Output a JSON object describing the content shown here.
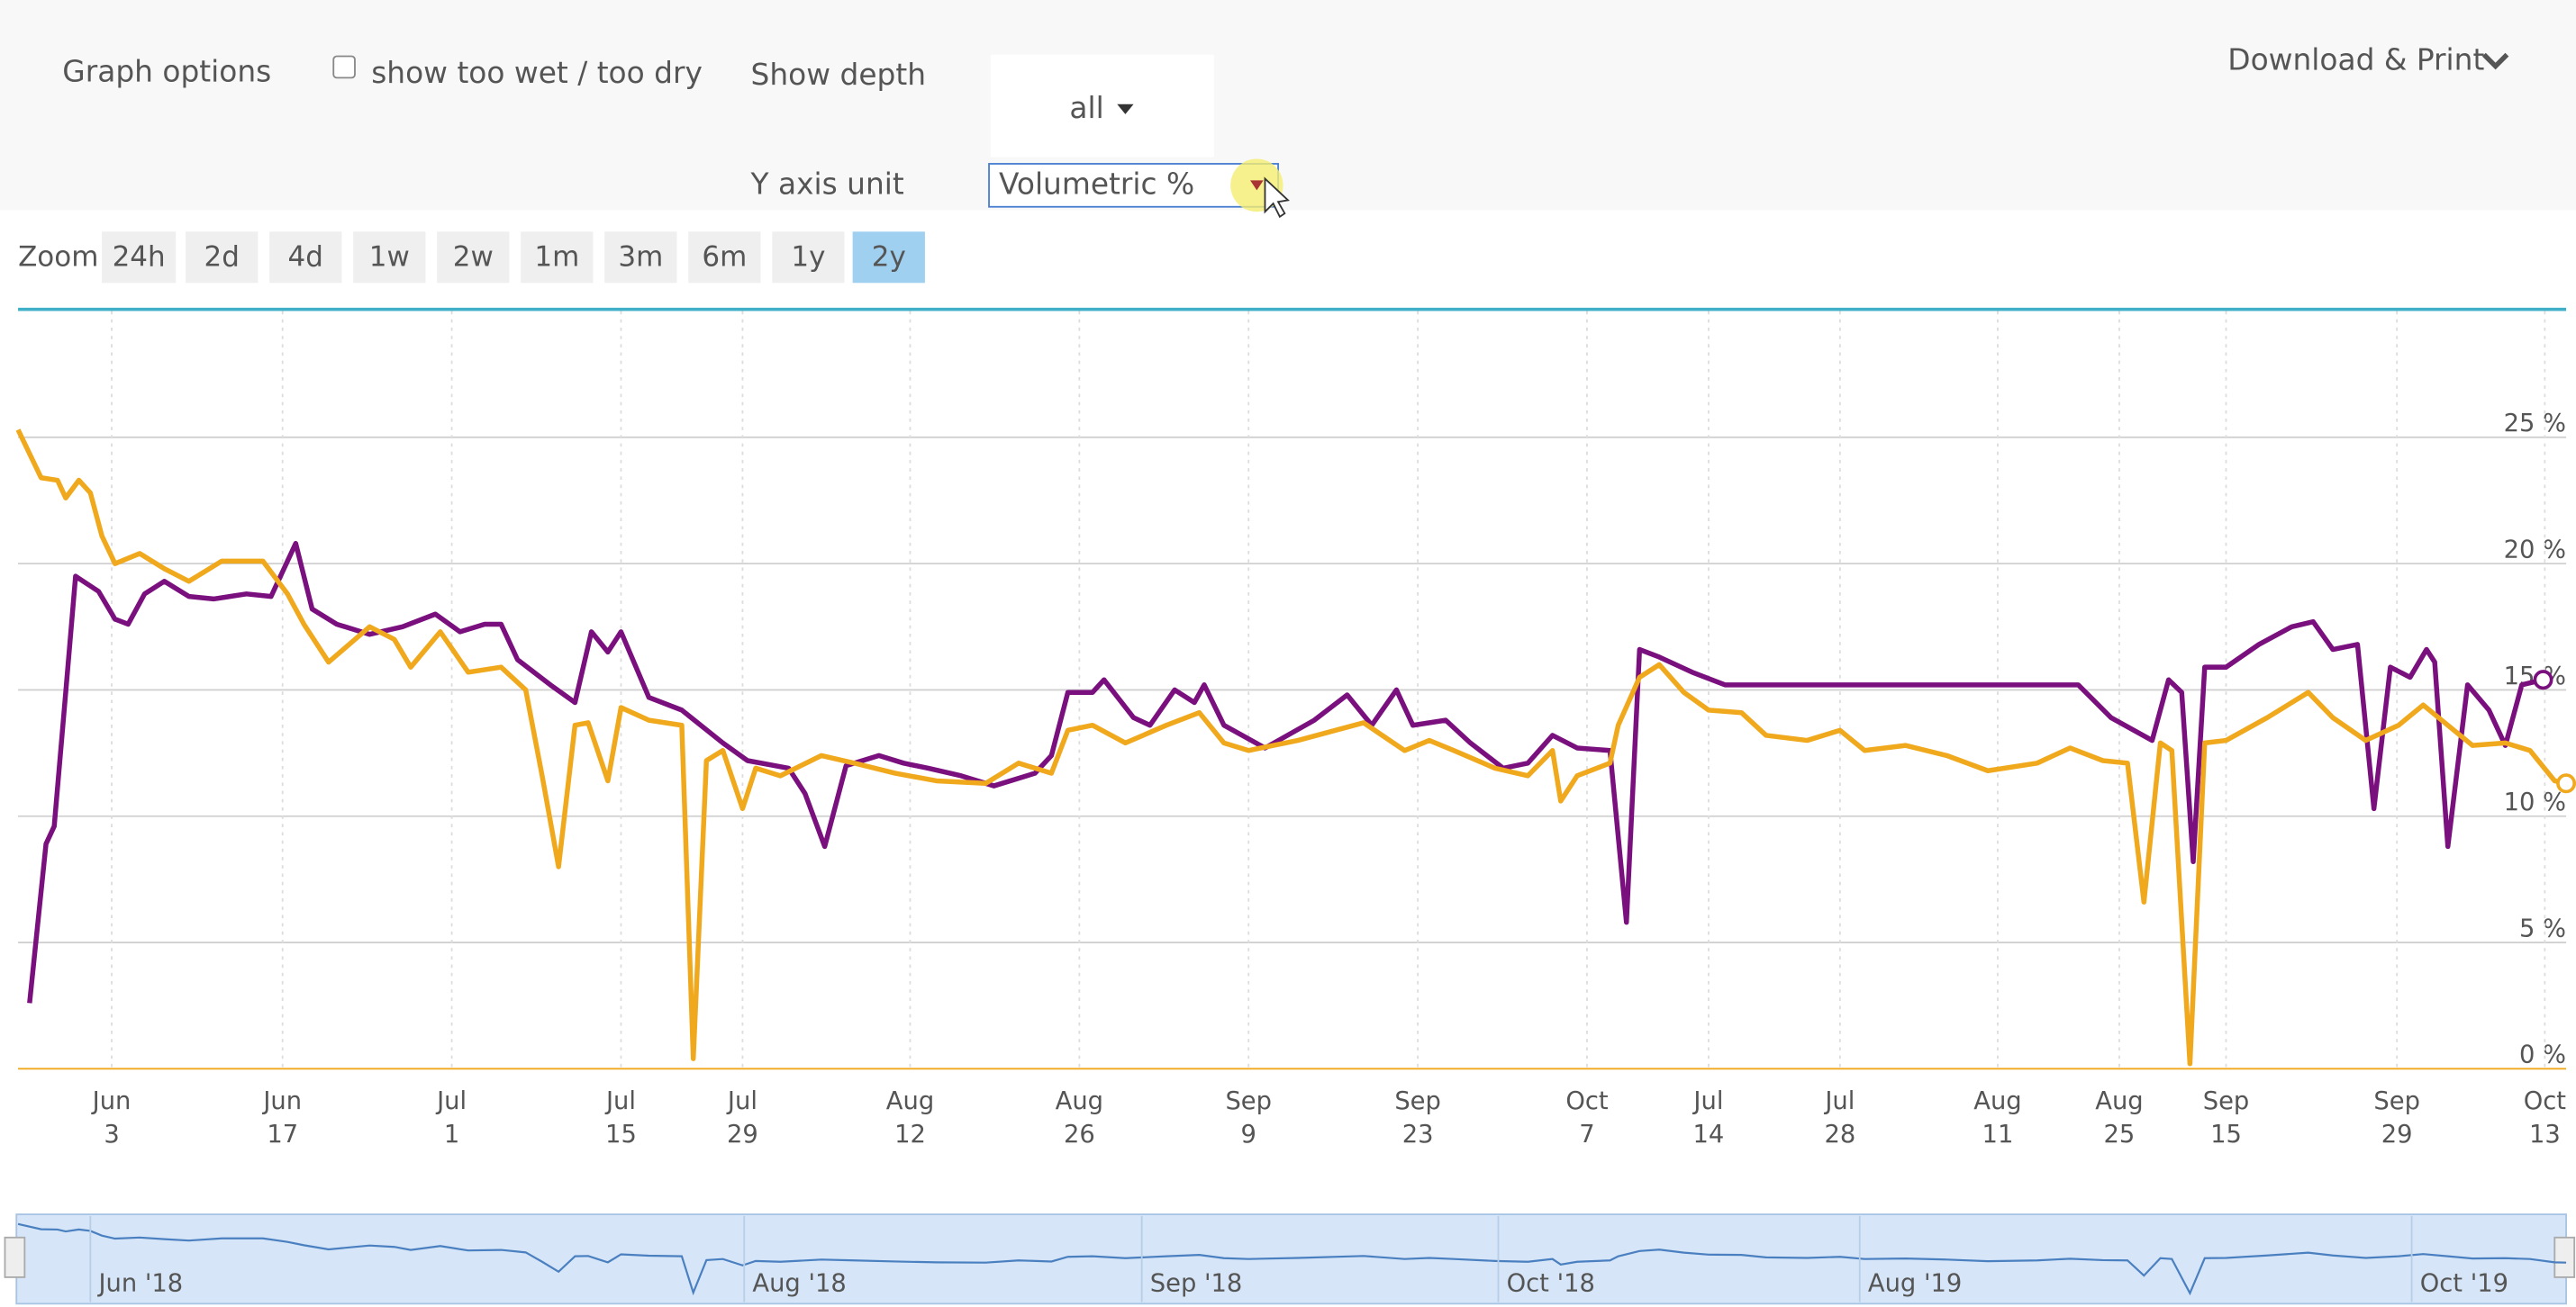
{
  "ui": {
    "graph_options": "Graph options",
    "checkbox_label": "show too wet / too dry",
    "show_depth": "Show depth",
    "depth_value": "all",
    "y_axis_unit": "Y axis unit",
    "unit_value": "Volumetric %",
    "download": "Download & Print",
    "zoom_label": "Zoom",
    "zoom_buttons": [
      "24h",
      "2d",
      "4d",
      "1w",
      "2w",
      "1m",
      "3m",
      "6m",
      "1y",
      "2y"
    ],
    "zoom_active": "2y",
    "navigator_labels": [
      "Jun '18",
      "Aug '18",
      "Sep '18",
      "Oct '18",
      "Aug '19",
      "Oct '19"
    ]
  },
  "chart_data": {
    "type": "line",
    "xlim": [
      0,
      1551
    ],
    "ylim": [
      0,
      30
    ],
    "yticks": [
      {
        "value": 0,
        "label": "0 %"
      },
      {
        "value": 5,
        "label": "5 %"
      },
      {
        "value": 10,
        "label": "10 %"
      },
      {
        "value": 15,
        "label": "15 %"
      },
      {
        "value": 20,
        "label": "20 %"
      },
      {
        "value": 25,
        "label": "25 %"
      }
    ],
    "xticks": [
      {
        "value": 57,
        "label": "Jun 3"
      },
      {
        "value": 161,
        "label": "Jun 17"
      },
      {
        "value": 264,
        "label": "Jul 1"
      },
      {
        "value": 367,
        "label": "Jul 15"
      },
      {
        "value": 441,
        "label": "Jul 29"
      },
      {
        "value": 543,
        "label": "Aug 12"
      },
      {
        "value": 646,
        "label": "Aug 26"
      },
      {
        "value": 749,
        "label": "Sep 9"
      },
      {
        "value": 852,
        "label": "Sep 23"
      },
      {
        "value": 955,
        "label": "Oct 7"
      },
      {
        "value": 1029,
        "label": "Jul 14"
      },
      {
        "value": 1109,
        "label": "Jul 28"
      },
      {
        "value": 1205,
        "label": "Aug 11"
      },
      {
        "value": 1279,
        "label": "Aug 25"
      },
      {
        "value": 1344,
        "label": "Sep 15"
      },
      {
        "value": 1448,
        "label": "Sep 29"
      },
      {
        "value": 1538,
        "label": "Oct 13"
      }
    ],
    "grid": true,
    "series": [
      {
        "color": "#7a0f7e",
        "x": [
          7,
          17,
          22,
          29,
          35,
          49,
          59,
          67,
          77,
          89,
          104,
          119,
          139,
          154,
          169,
          179,
          194,
          214,
          234,
          254,
          269,
          284,
          294,
          304,
          324,
          339,
          349,
          359,
          367,
          384,
          404,
          429,
          444,
          469,
          479,
          491,
          504,
          524,
          539,
          554,
          574,
          594,
          619,
          629,
          639,
          654,
          661,
          679,
          689,
          704,
          716,
          722,
          734,
          759,
          789,
          809,
          824,
          839,
          849,
          869,
          884,
          904,
          919,
          934,
          949,
          969,
          979,
          987,
          999,
          1019,
          1039,
          1139,
          1254,
          1274,
          1299,
          1309,
          1317,
          1324,
          1331,
          1344,
          1364,
          1384,
          1397,
          1409,
          1424,
          1434,
          1444,
          1456,
          1466,
          1471,
          1479,
          1491,
          1504,
          1514,
          1524,
          1537
        ],
        "values": [
          2.6,
          8.9,
          9.6,
          14.9,
          19.5,
          18.9,
          17.8,
          17.6,
          18.8,
          19.3,
          18.7,
          18.6,
          18.8,
          18.7,
          20.8,
          18.2,
          17.6,
          17.2,
          17.5,
          18.0,
          17.3,
          17.6,
          17.6,
          16.2,
          15.2,
          14.5,
          17.3,
          16.5,
          17.3,
          14.7,
          14.2,
          12.9,
          12.2,
          11.9,
          10.9,
          8.8,
          12.0,
          12.4,
          12.1,
          11.9,
          11.6,
          11.2,
          11.7,
          12.4,
          14.9,
          14.9,
          15.4,
          13.9,
          13.6,
          15.0,
          14.5,
          15.2,
          13.6,
          12.7,
          13.8,
          14.8,
          13.6,
          15.0,
          13.6,
          13.8,
          12.9,
          11.9,
          12.1,
          13.2,
          12.7,
          12.6,
          5.8,
          16.6,
          16.3,
          15.7,
          15.2,
          15.2,
          15.2,
          13.9,
          13.0,
          15.4,
          14.9,
          8.2,
          15.9,
          15.9,
          16.8,
          17.5,
          17.7,
          16.6,
          16.8,
          10.3,
          15.9,
          15.5,
          16.6,
          16.1,
          8.8,
          15.2,
          14.2,
          12.8,
          15.2,
          15.4
        ]
      },
      {
        "color": "#f0a81c",
        "x": [
          0,
          14,
          24,
          29,
          37,
          44,
          51,
          59,
          74,
          89,
          104,
          124,
          149,
          164,
          174,
          189,
          214,
          229,
          239,
          257,
          274,
          294,
          309,
          319,
          329,
          339,
          347,
          359,
          367,
          384,
          404,
          411,
          419,
          429,
          441,
          449,
          464,
          489,
          509,
          534,
          559,
          589,
          609,
          629,
          639,
          654,
          674,
          699,
          719,
          734,
          749,
          779,
          819,
          844,
          859,
          874,
          899,
          919,
          934,
          939,
          949,
          969,
          974,
          987,
          999,
          1014,
          1029,
          1049,
          1064,
          1089,
          1109,
          1124,
          1149,
          1174,
          1199,
          1229,
          1249,
          1269,
          1284,
          1294,
          1304,
          1311,
          1322,
          1331,
          1344,
          1369,
          1394,
          1409,
          1429,
          1449,
          1464,
          1479,
          1494,
          1514,
          1529,
          1544,
          1551
        ],
        "values": [
          25.3,
          23.4,
          23.3,
          22.6,
          23.3,
          22.8,
          21.1,
          20.0,
          20.4,
          19.8,
          19.3,
          20.1,
          20.1,
          18.8,
          17.6,
          16.1,
          17.5,
          17.0,
          15.9,
          17.3,
          15.7,
          15.9,
          15.0,
          11.6,
          8.0,
          13.6,
          13.7,
          11.4,
          14.3,
          13.8,
          13.6,
          0.4,
          12.2,
          12.6,
          10.3,
          11.9,
          11.6,
          12.4,
          12.1,
          11.7,
          11.4,
          11.3,
          12.1,
          11.7,
          13.4,
          13.6,
          12.9,
          13.6,
          14.1,
          12.9,
          12.6,
          13.0,
          13.7,
          12.6,
          13.0,
          12.6,
          11.9,
          11.6,
          12.6,
          10.6,
          11.6,
          12.1,
          13.6,
          15.5,
          16.0,
          14.9,
          14.2,
          14.1,
          13.2,
          13.0,
          13.4,
          12.6,
          12.8,
          12.4,
          11.8,
          12.1,
          12.7,
          12.2,
          12.1,
          6.6,
          12.9,
          12.6,
          0.2,
          12.9,
          13.0,
          13.9,
          14.9,
          13.9,
          13.0,
          13.6,
          14.4,
          13.6,
          12.8,
          12.9,
          12.6,
          11.4,
          11.3
        ]
      }
    ]
  }
}
